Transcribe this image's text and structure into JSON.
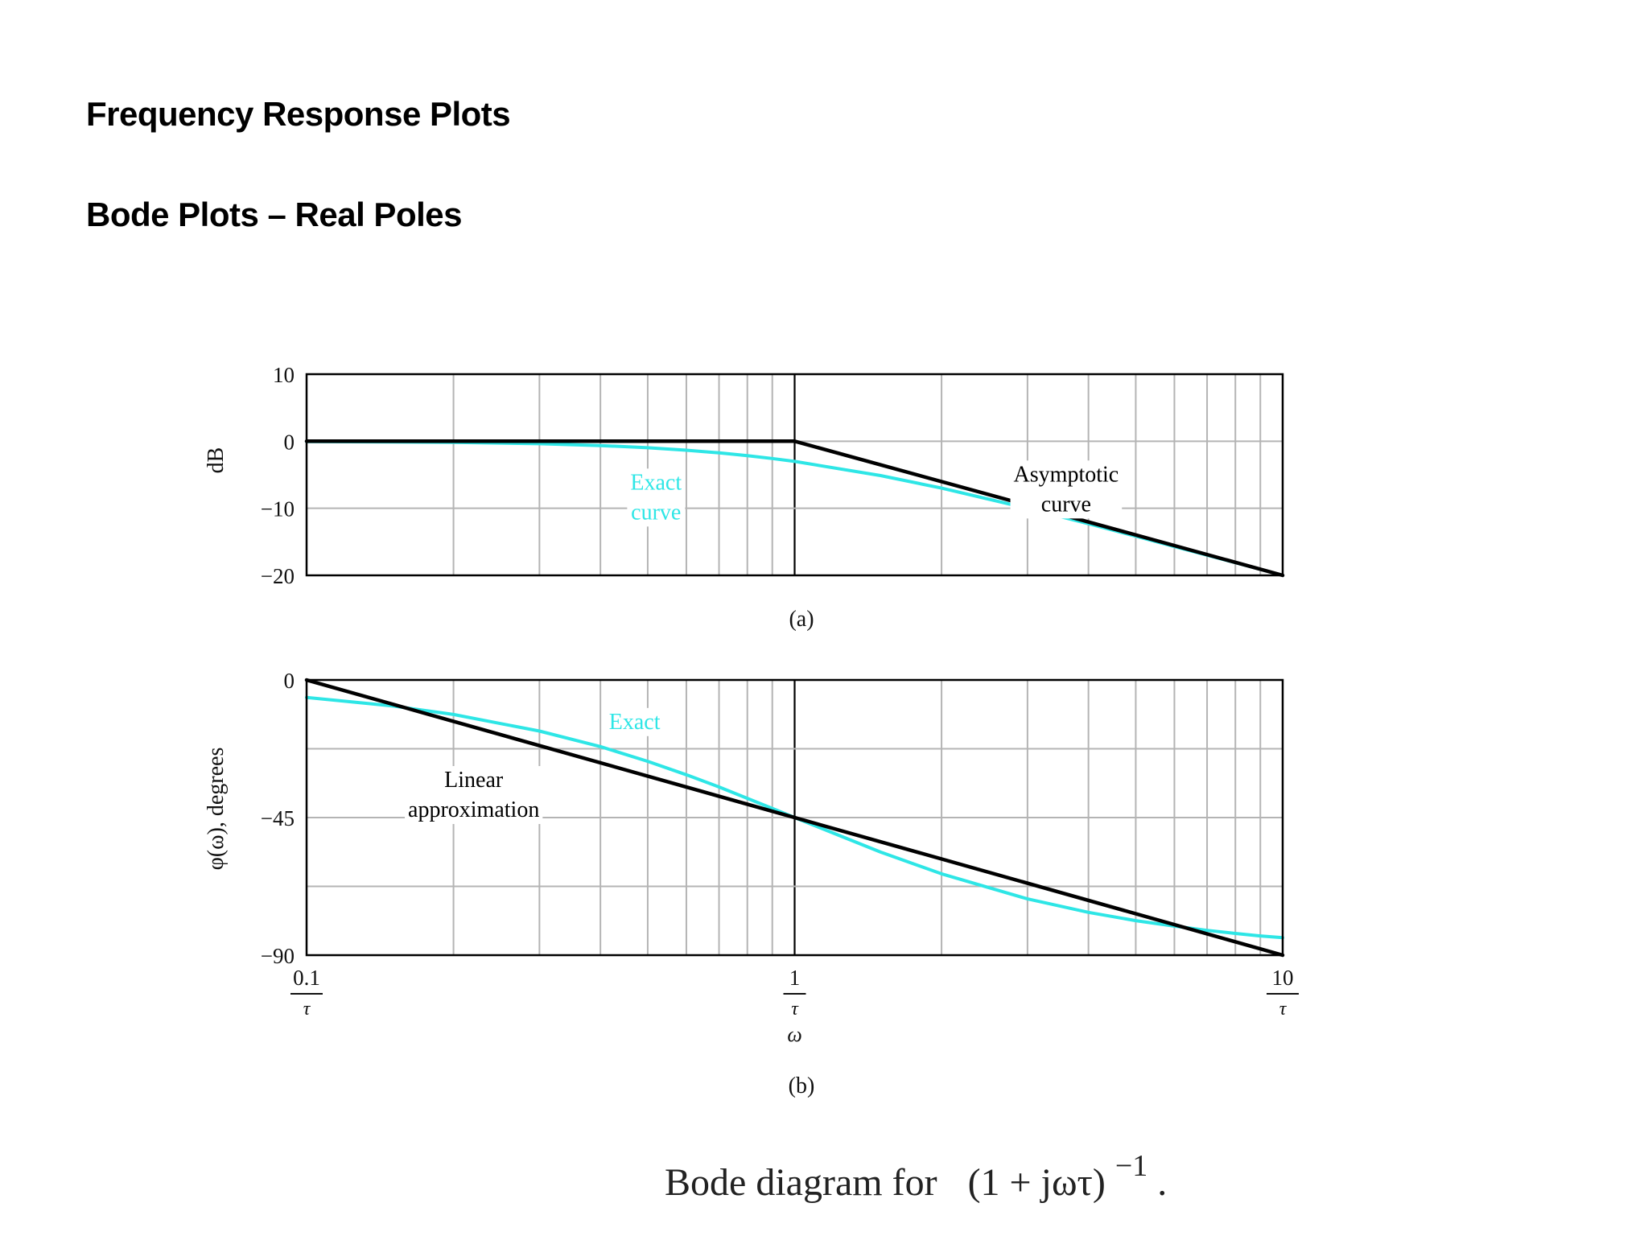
{
  "slide": {
    "title": "Frequency Response Plots",
    "subtitle": "Bode Plots – Real Poles",
    "caption_prefix": "Bode diagram for",
    "caption_expr": "(1 + jωτ)",
    "caption_exp": "−1",
    "caption_end": "."
  },
  "colors": {
    "exact": "#2EE6E6",
    "asymptote": "#000000",
    "grid": "#B4B4B4"
  },
  "chart_data": [
    {
      "type": "line",
      "panel_label": "(a)",
      "ylabel": "dB",
      "x_scale": "log",
      "xlim": [
        0.1,
        10
      ],
      "ylim": [
        -20,
        10
      ],
      "yticks": [
        10,
        0,
        -10,
        -20
      ],
      "ytick_labels": [
        "10",
        "0",
        "−10",
        "−20"
      ],
      "grid": true,
      "series": [
        {
          "name": "Exact curve",
          "color": "#2EE6E6",
          "x": [
            0.1,
            0.15,
            0.2,
            0.3,
            0.4,
            0.5,
            0.6,
            0.7,
            0.8,
            0.9,
            1,
            1.5,
            2,
            3,
            4,
            5,
            6,
            7,
            8,
            9,
            10
          ],
          "values": [
            -0.04,
            -0.1,
            -0.17,
            -0.37,
            -0.64,
            -0.97,
            -1.34,
            -1.73,
            -2.15,
            -2.58,
            -3.01,
            -5.12,
            -6.99,
            -10.0,
            -12.3,
            -14.15,
            -15.7,
            -17.0,
            -18.1,
            -19.1,
            -20.0
          ]
        },
        {
          "name": "Asymptotic curve",
          "color": "#000000",
          "x": [
            0.1,
            1,
            10
          ],
          "values": [
            0,
            0,
            -20
          ]
        }
      ],
      "annotations": [
        {
          "lines": [
            "Exact",
            "curve"
          ],
          "x": 0.52,
          "y": -7.2,
          "color": "#2EE6E6"
        },
        {
          "lines": [
            "Asymptotic",
            "curve"
          ],
          "x": 3.6,
          "y": -6.0,
          "color": "#000000"
        }
      ]
    },
    {
      "type": "line",
      "panel_label": "(b)",
      "ylabel": "φ(ω), degrees",
      "xlabel": "ω",
      "x_scale": "log",
      "xlim": [
        0.1,
        10
      ],
      "ylim": [
        -90,
        0
      ],
      "yticks": [
        0,
        -45,
        -90
      ],
      "ytick_labels": [
        "0",
        "−45",
        "−90"
      ],
      "xtick_labels": [
        {
          "num": "0.1",
          "den": "τ"
        },
        {
          "num": "1",
          "den": "τ"
        },
        {
          "num": "10",
          "den": "τ"
        }
      ],
      "grid": true,
      "series": [
        {
          "name": "Exact",
          "color": "#2EE6E6",
          "x": [
            0.1,
            0.15,
            0.2,
            0.3,
            0.4,
            0.5,
            0.6,
            0.7,
            0.8,
            0.9,
            1,
            1.5,
            2,
            3,
            4,
            5,
            6,
            7,
            8,
            9,
            10
          ],
          "values": [
            -5.7,
            -8.5,
            -11.3,
            -16.7,
            -21.8,
            -26.6,
            -31.0,
            -35.0,
            -38.7,
            -42.0,
            -45.0,
            -56.3,
            -63.4,
            -71.6,
            -76.0,
            -78.7,
            -80.5,
            -81.9,
            -82.9,
            -83.7,
            -84.3
          ]
        },
        {
          "name": "Linear approximation",
          "color": "#000000",
          "x": [
            0.1,
            10
          ],
          "values": [
            0,
            -90
          ]
        }
      ],
      "annotations": [
        {
          "lines": [
            "Exact"
          ],
          "x": 0.47,
          "y": -16,
          "color": "#2EE6E6"
        },
        {
          "lines": [
            "Linear",
            "approximation"
          ],
          "x": 0.22,
          "y": -35,
          "color": "#000000"
        }
      ]
    }
  ]
}
